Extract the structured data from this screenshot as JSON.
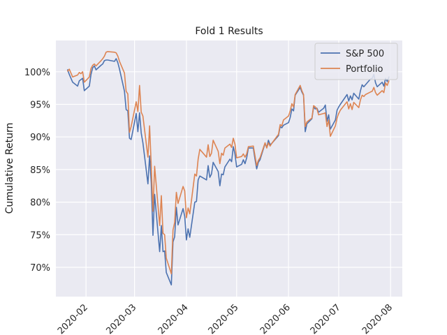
{
  "chart_data": {
    "type": "line",
    "title": "Fold 1 Results",
    "xlabel": "",
    "ylabel": "Cumulative Return",
    "xlim": [
      "2020-01-14",
      "2020-08-08"
    ],
    "ylim": [
      65.5,
      104.8
    ],
    "y_ticks": [
      70,
      75,
      80,
      85,
      90,
      95,
      100
    ],
    "y_tick_labels": [
      "70%",
      "75%",
      "80%",
      "85%",
      "90%",
      "95%",
      "100%"
    ],
    "x_ticks": [
      "2020-02-01",
      "2020-03-01",
      "2020-04-01",
      "2020-05-01",
      "2020-06-01",
      "2020-07-01",
      "2020-08-01"
    ],
    "x_tick_labels": [
      "2020-02",
      "2020-03",
      "2020-04",
      "2020-05",
      "2020-06",
      "2020-07",
      "2020-08"
    ],
    "grid": true,
    "legend_position": "top-right",
    "series": [
      {
        "name": "S&P 500",
        "color": "#4c72b0",
        "points": [
          [
            "2020-01-21",
            100.3
          ],
          [
            "2020-01-22",
            99.6
          ],
          [
            "2020-01-23",
            99.0
          ],
          [
            "2020-01-24",
            98.4
          ],
          [
            "2020-01-27",
            97.8
          ],
          [
            "2020-01-28",
            98.6
          ],
          [
            "2020-01-29",
            98.8
          ],
          [
            "2020-01-30",
            99.0
          ],
          [
            "2020-01-31",
            97.1
          ],
          [
            "2020-02-03",
            97.8
          ],
          [
            "2020-02-04",
            99.6
          ],
          [
            "2020-02-05",
            100.6
          ],
          [
            "2020-02-06",
            100.9
          ],
          [
            "2020-02-07",
            100.3
          ],
          [
            "2020-02-10",
            101.0
          ],
          [
            "2020-02-11",
            101.2
          ],
          [
            "2020-02-12",
            101.7
          ],
          [
            "2020-02-13",
            101.8
          ],
          [
            "2020-02-14",
            101.8
          ],
          [
            "2020-02-18",
            101.6
          ],
          [
            "2020-02-19",
            102.0
          ],
          [
            "2020-02-20",
            101.4
          ],
          [
            "2020-02-21",
            100.4
          ],
          [
            "2020-02-24",
            97.0
          ],
          [
            "2020-02-25",
            94.2
          ],
          [
            "2020-02-26",
            94.0
          ],
          [
            "2020-02-27",
            89.8
          ],
          [
            "2020-02-28",
            89.6
          ],
          [
            "2020-03-02",
            93.6
          ],
          [
            "2020-03-03",
            90.8
          ],
          [
            "2020-03-04",
            93.7
          ],
          [
            "2020-03-05",
            90.6
          ],
          [
            "2020-03-06",
            89.1
          ],
          [
            "2020-03-09",
            82.8
          ],
          [
            "2020-03-10",
            87.1
          ],
          [
            "2020-03-11",
            82.9
          ],
          [
            "2020-03-12",
            74.9
          ],
          [
            "2020-03-13",
            81.2
          ],
          [
            "2020-03-16",
            72.4
          ],
          [
            "2020-03-17",
            76.4
          ],
          [
            "2020-03-18",
            72.4
          ],
          [
            "2020-03-19",
            72.5
          ],
          [
            "2020-03-20",
            69.2
          ],
          [
            "2020-03-23",
            67.3
          ],
          [
            "2020-03-24",
            73.9
          ],
          [
            "2020-03-25",
            74.7
          ],
          [
            "2020-03-26",
            79.2
          ],
          [
            "2020-03-27",
            76.5
          ],
          [
            "2020-03-30",
            79.0
          ],
          [
            "2020-03-31",
            77.8
          ],
          [
            "2020-04-01",
            74.2
          ],
          [
            "2020-04-02",
            75.9
          ],
          [
            "2020-04-03",
            74.6
          ],
          [
            "2020-04-06",
            80.0
          ],
          [
            "2020-04-07",
            80.1
          ],
          [
            "2020-04-08",
            83.4
          ],
          [
            "2020-04-09",
            84.0
          ],
          [
            "2020-04-13",
            83.4
          ],
          [
            "2020-04-14",
            85.6
          ],
          [
            "2020-04-15",
            83.8
          ],
          [
            "2020-04-16",
            84.3
          ],
          [
            "2020-04-17",
            86.1
          ],
          [
            "2020-04-20",
            84.7
          ],
          [
            "2020-04-21",
            82.5
          ],
          [
            "2020-04-22",
            84.3
          ],
          [
            "2020-04-23",
            84.2
          ],
          [
            "2020-04-24",
            85.4
          ],
          [
            "2020-04-27",
            86.6
          ],
          [
            "2020-04-28",
            86.2
          ],
          [
            "2020-04-29",
            88.5
          ],
          [
            "2020-04-30",
            87.4
          ],
          [
            "2020-05-01",
            85.4
          ],
          [
            "2020-05-04",
            85.8
          ],
          [
            "2020-05-05",
            86.5
          ],
          [
            "2020-05-06",
            85.9
          ],
          [
            "2020-05-07",
            86.8
          ],
          [
            "2020-05-08",
            88.3
          ],
          [
            "2020-05-11",
            88.3
          ],
          [
            "2020-05-12",
            86.6
          ],
          [
            "2020-05-13",
            85.1
          ],
          [
            "2020-05-14",
            86.1
          ],
          [
            "2020-05-15",
            86.5
          ],
          [
            "2020-05-18",
            89.0
          ],
          [
            "2020-05-19",
            88.4
          ],
          [
            "2020-05-20",
            89.5
          ],
          [
            "2020-05-21",
            88.8
          ],
          [
            "2020-05-22",
            89.0
          ],
          [
            "2020-05-26",
            90.2
          ],
          [
            "2020-05-27",
            91.6
          ],
          [
            "2020-05-28",
            91.4
          ],
          [
            "2020-05-29",
            91.8
          ],
          [
            "2020-06-01",
            92.2
          ],
          [
            "2020-06-02",
            93.0
          ],
          [
            "2020-06-03",
            94.3
          ],
          [
            "2020-06-04",
            94.0
          ],
          [
            "2020-06-05",
            96.4
          ],
          [
            "2020-06-08",
            97.6
          ],
          [
            "2020-06-09",
            96.9
          ],
          [
            "2020-06-10",
            96.4
          ],
          [
            "2020-06-11",
            90.8
          ],
          [
            "2020-06-12",
            92.0
          ],
          [
            "2020-06-15",
            92.8
          ],
          [
            "2020-06-16",
            94.6
          ],
          [
            "2020-06-17",
            94.3
          ],
          [
            "2020-06-18",
            94.4
          ],
          [
            "2020-06-19",
            93.8
          ],
          [
            "2020-06-22",
            94.4
          ],
          [
            "2020-06-23",
            94.9
          ],
          [
            "2020-06-24",
            92.4
          ],
          [
            "2020-06-25",
            93.4
          ],
          [
            "2020-06-26",
            91.2
          ],
          [
            "2020-06-29",
            92.6
          ],
          [
            "2020-06-30",
            94.1
          ],
          [
            "2020-07-01",
            94.6
          ],
          [
            "2020-07-02",
            95.0
          ],
          [
            "2020-07-06",
            96.5
          ],
          [
            "2020-07-07",
            95.5
          ],
          [
            "2020-07-08",
            96.3
          ],
          [
            "2020-07-09",
            95.7
          ],
          [
            "2020-07-10",
            96.7
          ],
          [
            "2020-07-13",
            95.8
          ],
          [
            "2020-07-14",
            97.1
          ],
          [
            "2020-07-15",
            98.0
          ],
          [
            "2020-07-16",
            97.7
          ],
          [
            "2020-07-17",
            98.0
          ],
          [
            "2020-07-20",
            98.9
          ],
          [
            "2020-07-21",
            99.0
          ],
          [
            "2020-07-22",
            99.6
          ],
          [
            "2020-07-23",
            98.3
          ],
          [
            "2020-07-24",
            97.7
          ],
          [
            "2020-07-27",
            98.4
          ],
          [
            "2020-07-28",
            97.8
          ],
          [
            "2020-07-29",
            99.0
          ],
          [
            "2020-07-30",
            98.5
          ],
          [
            "2020-07-31",
            99.2
          ]
        ]
      },
      {
        "name": "Portfolio",
        "color": "#dd8452",
        "points": [
          [
            "2020-01-21",
            100.1
          ],
          [
            "2020-01-22",
            100.4
          ],
          [
            "2020-01-23",
            99.8
          ],
          [
            "2020-01-24",
            99.2
          ],
          [
            "2020-01-27",
            99.5
          ],
          [
            "2020-01-28",
            99.9
          ],
          [
            "2020-01-29",
            99.7
          ],
          [
            "2020-01-30",
            100.0
          ],
          [
            "2020-01-31",
            98.4
          ],
          [
            "2020-02-03",
            99.2
          ],
          [
            "2020-02-04",
            100.5
          ],
          [
            "2020-02-05",
            101.0
          ],
          [
            "2020-02-06",
            101.2
          ],
          [
            "2020-02-07",
            100.9
          ],
          [
            "2020-02-10",
            101.7
          ],
          [
            "2020-02-11",
            102.0
          ],
          [
            "2020-02-12",
            102.4
          ],
          [
            "2020-02-13",
            103.0
          ],
          [
            "2020-02-14",
            103.1
          ],
          [
            "2020-02-18",
            103.0
          ],
          [
            "2020-02-19",
            102.9
          ],
          [
            "2020-02-20",
            102.4
          ],
          [
            "2020-02-21",
            101.6
          ],
          [
            "2020-02-24",
            99.8
          ],
          [
            "2020-02-25",
            97.0
          ],
          [
            "2020-02-26",
            96.6
          ],
          [
            "2020-02-27",
            90.7
          ],
          [
            "2020-02-28",
            91.6
          ],
          [
            "2020-03-02",
            95.4
          ],
          [
            "2020-03-03",
            93.9
          ],
          [
            "2020-03-04",
            97.9
          ],
          [
            "2020-03-05",
            93.8
          ],
          [
            "2020-03-06",
            93.2
          ],
          [
            "2020-03-09",
            86.9
          ],
          [
            "2020-03-10",
            91.7
          ],
          [
            "2020-03-11",
            85.4
          ],
          [
            "2020-03-12",
            78.6
          ],
          [
            "2020-03-13",
            85.5
          ],
          [
            "2020-03-16",
            76.4
          ],
          [
            "2020-03-17",
            81.0
          ],
          [
            "2020-03-18",
            75.2
          ],
          [
            "2020-03-19",
            75.0
          ],
          [
            "2020-03-20",
            71.4
          ],
          [
            "2020-03-23",
            69.0
          ],
          [
            "2020-03-24",
            75.7
          ],
          [
            "2020-03-25",
            76.9
          ],
          [
            "2020-03-26",
            81.5
          ],
          [
            "2020-03-27",
            79.8
          ],
          [
            "2020-03-30",
            82.4
          ],
          [
            "2020-03-31",
            81.7
          ],
          [
            "2020-04-01",
            77.6
          ],
          [
            "2020-04-02",
            79.1
          ],
          [
            "2020-04-03",
            78.2
          ],
          [
            "2020-04-06",
            84.3
          ],
          [
            "2020-04-07",
            84.0
          ],
          [
            "2020-04-08",
            86.6
          ],
          [
            "2020-04-09",
            88.1
          ],
          [
            "2020-04-13",
            86.9
          ],
          [
            "2020-04-14",
            88.8
          ],
          [
            "2020-04-15",
            87.0
          ],
          [
            "2020-04-16",
            87.5
          ],
          [
            "2020-04-17",
            89.5
          ],
          [
            "2020-04-20",
            87.8
          ],
          [
            "2020-04-21",
            85.9
          ],
          [
            "2020-04-22",
            87.5
          ],
          [
            "2020-04-23",
            87.2
          ],
          [
            "2020-04-24",
            88.3
          ],
          [
            "2020-04-27",
            88.9
          ],
          [
            "2020-04-28",
            88.4
          ],
          [
            "2020-04-29",
            89.8
          ],
          [
            "2020-04-30",
            88.9
          ],
          [
            "2020-05-01",
            86.8
          ],
          [
            "2020-05-04",
            87.0
          ],
          [
            "2020-05-05",
            87.4
          ],
          [
            "2020-05-06",
            86.9
          ],
          [
            "2020-05-07",
            87.4
          ],
          [
            "2020-05-08",
            88.5
          ],
          [
            "2020-05-11",
            88.6
          ],
          [
            "2020-05-12",
            87.1
          ],
          [
            "2020-05-13",
            85.6
          ],
          [
            "2020-05-14",
            86.4
          ],
          [
            "2020-05-15",
            86.8
          ],
          [
            "2020-05-18",
            89.1
          ],
          [
            "2020-05-19",
            88.3
          ],
          [
            "2020-05-20",
            89.1
          ],
          [
            "2020-05-21",
            88.6
          ],
          [
            "2020-05-22",
            89.0
          ],
          [
            "2020-05-26",
            90.4
          ],
          [
            "2020-05-27",
            91.9
          ],
          [
            "2020-05-28",
            91.7
          ],
          [
            "2020-05-29",
            92.6
          ],
          [
            "2020-06-01",
            93.2
          ],
          [
            "2020-06-02",
            94.0
          ],
          [
            "2020-06-03",
            95.1
          ],
          [
            "2020-06-04",
            94.6
          ],
          [
            "2020-06-05",
            96.5
          ],
          [
            "2020-06-08",
            97.9
          ],
          [
            "2020-06-09",
            97.1
          ],
          [
            "2020-06-10",
            96.5
          ],
          [
            "2020-06-11",
            91.6
          ],
          [
            "2020-06-12",
            92.3
          ],
          [
            "2020-06-15",
            92.9
          ],
          [
            "2020-06-16",
            94.8
          ],
          [
            "2020-06-17",
            94.6
          ],
          [
            "2020-06-18",
            94.3
          ],
          [
            "2020-06-19",
            93.4
          ],
          [
            "2020-06-22",
            93.6
          ],
          [
            "2020-06-23",
            93.7
          ],
          [
            "2020-06-24",
            91.6
          ],
          [
            "2020-06-25",
            92.6
          ],
          [
            "2020-06-26",
            90.1
          ],
          [
            "2020-06-29",
            91.7
          ],
          [
            "2020-06-30",
            92.9
          ],
          [
            "2020-07-01",
            93.6
          ],
          [
            "2020-07-02",
            94.1
          ],
          [
            "2020-07-06",
            95.4
          ],
          [
            "2020-07-07",
            94.3
          ],
          [
            "2020-07-08",
            95.1
          ],
          [
            "2020-07-09",
            94.2
          ],
          [
            "2020-07-10",
            95.3
          ],
          [
            "2020-07-13",
            94.5
          ],
          [
            "2020-07-14",
            95.7
          ],
          [
            "2020-07-15",
            96.4
          ],
          [
            "2020-07-16",
            96.2
          ],
          [
            "2020-07-17",
            96.5
          ],
          [
            "2020-07-20",
            96.9
          ],
          [
            "2020-07-21",
            97.0
          ],
          [
            "2020-07-22",
            97.6
          ],
          [
            "2020-07-23",
            96.8
          ],
          [
            "2020-07-24",
            96.4
          ],
          [
            "2020-07-27",
            97.1
          ],
          [
            "2020-07-28",
            96.8
          ],
          [
            "2020-07-29",
            98.3
          ],
          [
            "2020-07-30",
            97.9
          ],
          [
            "2020-07-31",
            98.6
          ]
        ]
      }
    ]
  }
}
